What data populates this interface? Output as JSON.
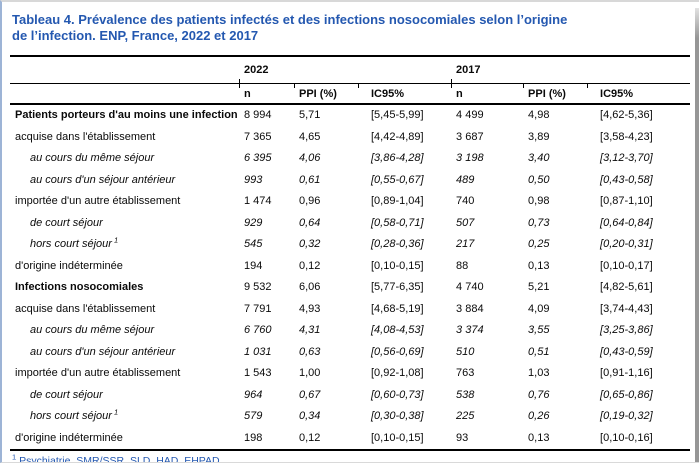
{
  "page": {
    "title_line1": "Tableau 4. Prévalence des patients infectés et des infections nosocomiales selon l’origine",
    "title_line2": "de l’infection. ENP, France, 2022 et 2017",
    "footnote_marker": "1",
    "footnote_text": "Psychiatrie, SMR/SSR, SLD, HAD, EHPAD"
  },
  "colors": {
    "title_blue": "#2458b0",
    "footnote_blue": "#2458b0",
    "rule_black": "#000000",
    "frame_left_blue": "#9db4d6",
    "edge_gray": "#969696"
  },
  "table": {
    "year_groups": [
      "2022",
      "2017"
    ],
    "column_headers": [
      "n",
      "PPI (%)",
      "IC95%",
      "n",
      "PPI (%)",
      "IC95%"
    ],
    "rows": [
      {
        "label": "Patients porteurs d'au moins une infection",
        "style": "bold",
        "sup": "",
        "values": [
          "8 994",
          "5,71",
          "[5,45-5,99]",
          "4 499",
          "4,98",
          "[4,62-5,36]"
        ]
      },
      {
        "label": "acquise dans l'établissement",
        "style": "normal",
        "sup": "",
        "values": [
          "7 365",
          "4,65",
          "[4,42-4,89]",
          "3 687",
          "3,89",
          "[3,58-4,23]"
        ]
      },
      {
        "label": "au cours du même séjour",
        "style": "italic",
        "sup": "",
        "values": [
          "6 395",
          "4,06",
          "[3,86-4,28]",
          "3 198",
          "3,40",
          "[3,12-3,70]"
        ]
      },
      {
        "label": "au cours d'un séjour antérieur",
        "style": "italic",
        "sup": "",
        "values": [
          "993",
          "0,61",
          "[0,55-0,67]",
          "489",
          "0,50",
          "[0,43-0,58]"
        ]
      },
      {
        "label": "importée d'un autre établissement",
        "style": "normal",
        "sup": "",
        "values": [
          "1 474",
          "0,96",
          "[0,89-1,04]",
          "740",
          "0,98",
          "[0,87-1,10]"
        ]
      },
      {
        "label": "de court séjour",
        "style": "italic",
        "sup": "",
        "values": [
          "929",
          "0,64",
          "[0,58-0,71]",
          "507",
          "0,73",
          "[0,64-0,84]"
        ]
      },
      {
        "label": "hors court séjour",
        "style": "italic",
        "sup": "1",
        "values": [
          "545",
          "0,32",
          "[0,28-0,36]",
          "217",
          "0,25",
          "[0,20-0,31]"
        ]
      },
      {
        "label": "d'origine indéterminée",
        "style": "normal",
        "sup": "",
        "values": [
          "194",
          "0,12",
          "[0,10-0,15]",
          "88",
          "0,13",
          "[0,10-0,17]"
        ]
      },
      {
        "label": "Infections nosocomiales",
        "style": "bold",
        "sup": "",
        "values": [
          "9 532",
          "6,06",
          "[5,77-6,35]",
          "4 740",
          "5,21",
          "[4,82-5,61]"
        ]
      },
      {
        "label": "acquise dans l'établissement",
        "style": "normal",
        "sup": "",
        "values": [
          "7 791",
          "4,93",
          "[4,68-5,19]",
          "3 884",
          "4,09",
          "[3,74-4,43]"
        ]
      },
      {
        "label": "au cours du même séjour",
        "style": "italic",
        "sup": "",
        "values": [
          "6 760",
          "4,31",
          "[4,08-4,53]",
          "3 374",
          "3,55",
          "[3,25-3,86]"
        ]
      },
      {
        "label": "au cours d'un séjour antérieur",
        "style": "italic",
        "sup": "",
        "values": [
          "1 031",
          "0,63",
          "[0,56-0,69]",
          "510",
          "0,51",
          "[0,43-0,59]"
        ]
      },
      {
        "label": "importée d'un autre établissement",
        "style": "normal",
        "sup": "",
        "values": [
          "1 543",
          "1,00",
          "[0,92-1,08]",
          "763",
          "1,03",
          "[0,91-1,16]"
        ]
      },
      {
        "label": "de court séjour",
        "style": "italic",
        "sup": "",
        "values": [
          "964",
          "0,67",
          "[0,60-0,73]",
          "538",
          "0,76",
          "[0,65-0,86]"
        ]
      },
      {
        "label": "hors court séjour",
        "style": "italic",
        "sup": "1",
        "values": [
          "579",
          "0,34",
          "[0,30-0,38]",
          "225",
          "0,26",
          "[0,19-0,32]"
        ]
      },
      {
        "label": "d'origine indéterminée",
        "style": "normal",
        "sup": "",
        "values": [
          "198",
          "0,12",
          "[0,10-0,15]",
          "93",
          "0,13",
          "[0,10-0,16]"
        ]
      }
    ]
  }
}
